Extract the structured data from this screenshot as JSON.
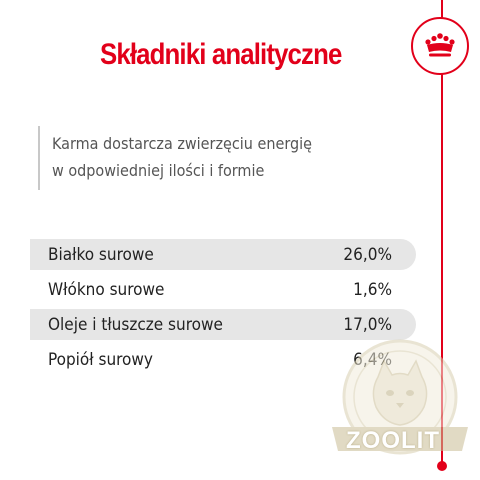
{
  "header": {
    "title": "Składniki analityczne",
    "logo_icon": "crown-icon",
    "accent_color": "#e2001a"
  },
  "description": {
    "line1": "Karma dostarcza zwierzęciu energię",
    "line2": "w odpowiedniej ilości i formie"
  },
  "nutrients": [
    {
      "label": "Białko surowe",
      "value": "26,0%"
    },
    {
      "label": "Włókno surowe",
      "value": "1,6%"
    },
    {
      "label": "Oleje i tłuszcze surowe",
      "value": "17,0%"
    },
    {
      "label": "Popiół surowy",
      "value": "6,4%"
    }
  ],
  "watermark": {
    "text": "ZOOLIT",
    "icon": "cat-emblem-icon"
  }
}
